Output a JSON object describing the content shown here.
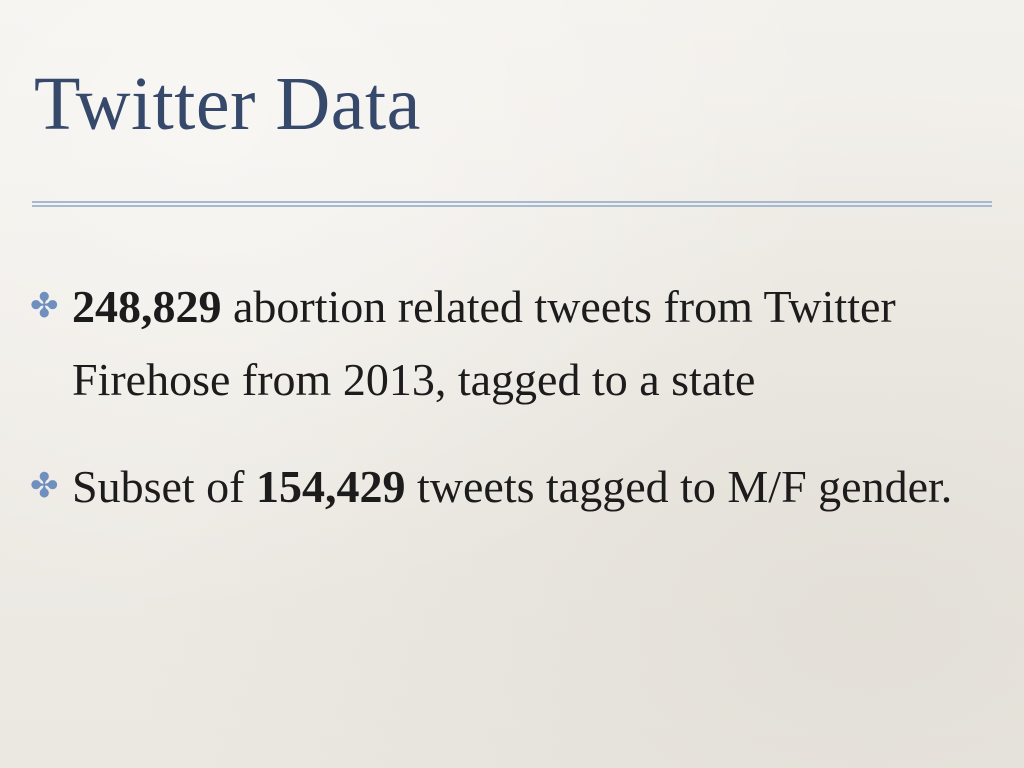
{
  "slide": {
    "title": "Twitter Data",
    "accent_color": "#36496b",
    "rule_color": "#a6b9d1",
    "bullet_marker_color": "#6f8fbf",
    "bullet_marker": "✤",
    "bullets": [
      {
        "bold": "248,829",
        "text": " abortion related tweets from Twitter Firehose from 2013, tagged to a state"
      },
      {
        "prefix": "Subset of ",
        "bold": "154,429",
        "text": " tweets tagged to M/F gender."
      }
    ]
  }
}
